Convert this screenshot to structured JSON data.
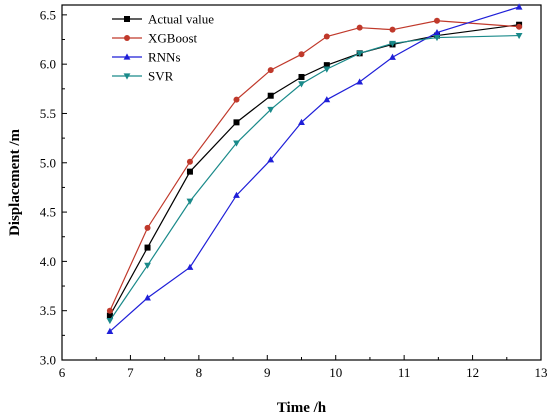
{
  "chart_data": {
    "type": "line",
    "title": "",
    "xlabel": "Time /h",
    "ylabel": "Displacement /m",
    "xlim": [
      6,
      13
    ],
    "ylim": [
      3.0,
      6.6
    ],
    "xticks": [
      6,
      7,
      8,
      9,
      10,
      11,
      12,
      13
    ],
    "xtick_labels": [
      "6",
      "7",
      "8",
      "9",
      "10",
      "11",
      "12",
      "13"
    ],
    "yticks": [
      3.0,
      3.5,
      4.0,
      4.5,
      5.0,
      5.5,
      6.0,
      6.5
    ],
    "ytick_labels": [
      "3.0",
      "3.5",
      "4.0",
      "4.5",
      "5.0",
      "5.5",
      "6.0",
      "6.5"
    ],
    "grid": false,
    "legend_position": "top-left",
    "series": [
      {
        "name": "Actual value",
        "color": "#000000",
        "marker": "square",
        "x": [
          6.7,
          7.25,
          7.87,
          8.55,
          9.05,
          9.5,
          9.87,
          10.35,
          10.83,
          11.48,
          12.68
        ],
        "y": [
          3.45,
          4.14,
          4.91,
          5.41,
          5.68,
          5.87,
          5.99,
          6.11,
          6.2,
          6.29,
          6.4
        ]
      },
      {
        "name": "XGBoost",
        "color": "#c0392b",
        "marker": "circle",
        "x": [
          6.7,
          7.25,
          7.87,
          8.55,
          9.05,
          9.5,
          9.87,
          10.35,
          10.83,
          11.48,
          12.68
        ],
        "y": [
          3.5,
          4.34,
          5.01,
          5.64,
          5.94,
          6.1,
          6.28,
          6.37,
          6.35,
          6.44,
          6.38
        ]
      },
      {
        "name": "RNNs",
        "color": "#1f1fd8",
        "marker": "triangle-up",
        "x": [
          6.7,
          7.25,
          7.87,
          8.55,
          9.05,
          9.5,
          9.87,
          10.35,
          10.83,
          11.48,
          12.68
        ],
        "y": [
          3.29,
          3.63,
          3.94,
          4.67,
          5.03,
          5.41,
          5.64,
          5.82,
          6.07,
          6.32,
          6.58
        ]
      },
      {
        "name": "SVR",
        "color": "#1a8a8a",
        "marker": "triangle-down",
        "x": [
          6.7,
          7.25,
          7.87,
          8.55,
          9.05,
          9.5,
          9.87,
          10.35,
          10.83,
          11.48,
          12.68
        ],
        "y": [
          3.4,
          3.96,
          4.61,
          5.2,
          5.54,
          5.8,
          5.95,
          6.11,
          6.21,
          6.27,
          6.29
        ]
      }
    ]
  }
}
